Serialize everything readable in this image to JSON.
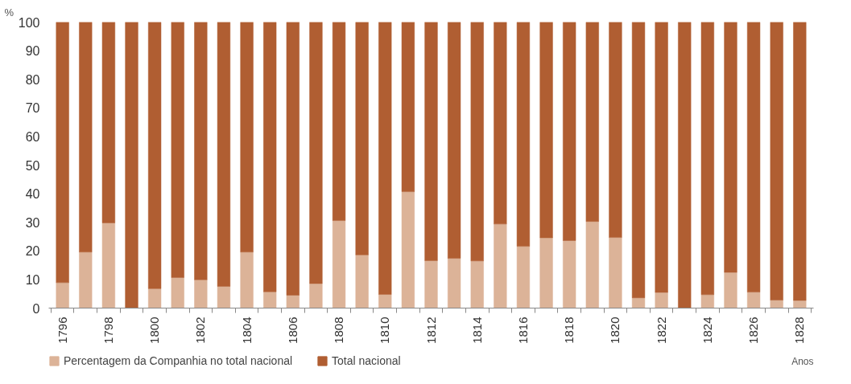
{
  "chart_data": {
    "type": "bar",
    "stacked": true,
    "ylabel": "%",
    "xlabel": "Anos",
    "categories": [
      "1796",
      null,
      "1798",
      null,
      "1800",
      null,
      "1802",
      null,
      "1804",
      null,
      "1806",
      null,
      "1808",
      null,
      "1810",
      null,
      "1812",
      null,
      "1814",
      null,
      "1816",
      null,
      "1818",
      null,
      "1820",
      null,
      "1822",
      null,
      "1824",
      null,
      "1826",
      null,
      "1828"
    ],
    "series": [
      {
        "name": "Percentagem da Companhia no total nacional",
        "color": "#dcb398",
        "values": [
          8.9,
          19.6,
          29.8,
          0,
          6.8,
          10.7,
          9.9,
          7.6,
          19.6,
          5.7,
          4.5,
          8.6,
          30.6,
          18.6,
          4.8,
          40.7,
          16.6,
          17.4,
          16.5,
          29.4,
          21.6,
          24.6,
          23.6,
          30.3,
          24.7,
          3.6,
          5.5,
          0,
          4.7,
          12.5,
          5.6,
          2.8,
          2.7
        ]
      },
      {
        "name": "Total nacional",
        "color": "#b05e32",
        "values": [
          91.1,
          80.4,
          70.2,
          100,
          93.2,
          89.3,
          90.1,
          92.4,
          80.4,
          94.3,
          95.5,
          91.4,
          69.4,
          81.4,
          95.2,
          59.3,
          83.4,
          82.6,
          83.5,
          70.6,
          78.4,
          75.4,
          76.4,
          69.7,
          75.3,
          96.4,
          94.5,
          100,
          95.3,
          87.5,
          94.4,
          97.2,
          97.3
        ]
      }
    ],
    "ylim": [
      0,
      100
    ],
    "yticks": [
      0,
      10,
      20,
      30,
      40,
      50,
      60,
      70,
      80,
      90,
      100
    ],
    "grid": false,
    "legend": "bottom left"
  }
}
